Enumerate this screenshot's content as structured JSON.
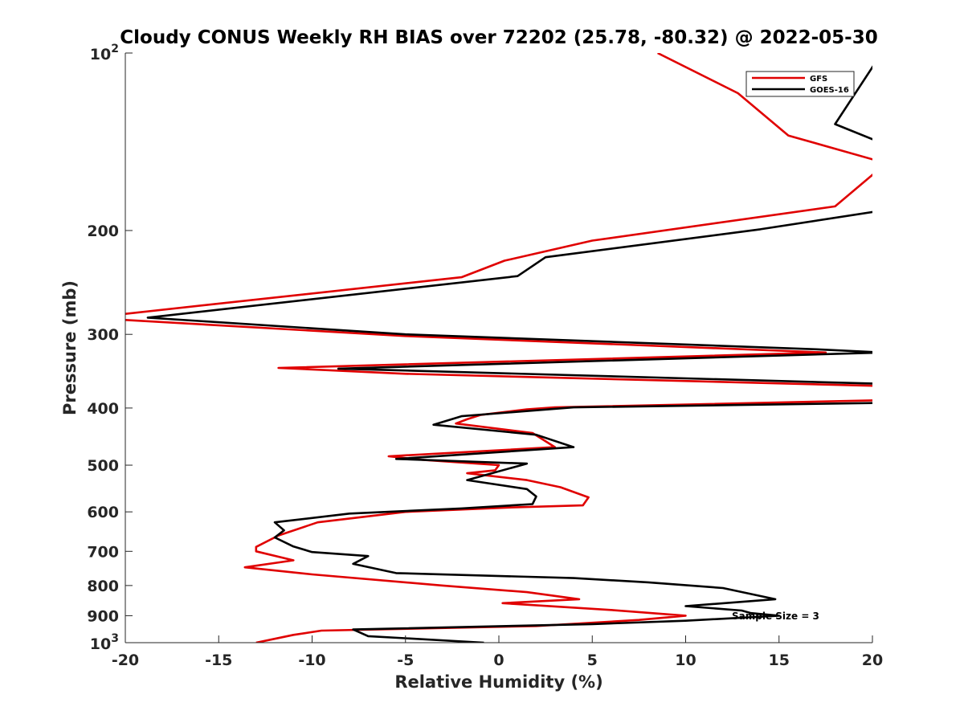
{
  "chart_data": {
    "type": "line",
    "title": "Cloudy CONUS Weekly RH BIAS over 72202 (25.78, -80.32) @ 2022-05-30",
    "xlabel": "Relative Humidity (%)",
    "ylabel": "Pressure (mb)",
    "xlim": [
      -20,
      20
    ],
    "ylim": [
      100,
      1000
    ],
    "y_scale": "log",
    "y_reversed": true,
    "grid": false,
    "legend_position": "top-right",
    "annotation": "Sample Size = 3",
    "x_ticks": [
      {
        "value": -20,
        "label": "-20"
      },
      {
        "value": -15,
        "label": "-15"
      },
      {
        "value": -10,
        "label": "-10"
      },
      {
        "value": -5,
        "label": "-5"
      },
      {
        "value": 0,
        "label": "0"
      },
      {
        "value": 5,
        "label": "5"
      },
      {
        "value": 10,
        "label": "10"
      },
      {
        "value": 15,
        "label": "15"
      },
      {
        "value": 20,
        "label": "20"
      }
    ],
    "y_ticks": [
      {
        "value": 100,
        "base": "10",
        "exp": "2"
      },
      {
        "value": 200,
        "label": "200"
      },
      {
        "value": 300,
        "label": "300"
      },
      {
        "value": 400,
        "label": "400"
      },
      {
        "value": 500,
        "label": "500"
      },
      {
        "value": 600,
        "label": "600"
      },
      {
        "value": 700,
        "label": "700"
      },
      {
        "value": 800,
        "label": "800"
      },
      {
        "value": 900,
        "label": "900"
      },
      {
        "value": 1000,
        "base": "10",
        "exp": "3"
      }
    ],
    "series": [
      {
        "name": "GFS",
        "color": "#e00000",
        "points": [
          [
            8.5,
            100
          ],
          [
            12.8,
            117
          ],
          [
            15.5,
            138
          ],
          [
            20.5,
            153
          ],
          [
            20.3,
            158
          ],
          [
            18.0,
            182
          ],
          [
            5.0,
            208
          ],
          [
            0.3,
            225
          ],
          [
            -2.0,
            240
          ],
          [
            -20.5,
            278
          ],
          [
            -20.5,
            283
          ],
          [
            -5.0,
            302
          ],
          [
            17.5,
            322
          ],
          [
            -11.8,
            342
          ],
          [
            -5.0,
            350
          ],
          [
            20.5,
            367
          ],
          [
            20.5,
            388
          ],
          [
            3.0,
            399
          ],
          [
            1.5,
            402
          ],
          [
            -1.0,
            411
          ],
          [
            -1.7,
            418
          ],
          [
            -2.3,
            425
          ],
          [
            1.8,
            441
          ],
          [
            3.0,
            466
          ],
          [
            -5.9,
            483
          ],
          [
            -4.0,
            490
          ],
          [
            0.0,
            500
          ],
          [
            -0.2,
            510
          ],
          [
            -1.7,
            516
          ],
          [
            1.5,
            530
          ],
          [
            3.3,
            545
          ],
          [
            4.8,
            567
          ],
          [
            4.5,
            585
          ],
          [
            0.5,
            590
          ],
          [
            -5.0,
            600
          ],
          [
            -9.7,
            625
          ],
          [
            -11.8,
            658
          ],
          [
            -13.0,
            688
          ],
          [
            -13.0,
            700
          ],
          [
            -11.0,
            725
          ],
          [
            -13.6,
            745
          ],
          [
            -10.0,
            766
          ],
          [
            -3.0,
            800
          ],
          [
            1.5,
            821
          ],
          [
            4.3,
            844
          ],
          [
            0.2,
            857
          ],
          [
            6.0,
            880
          ],
          [
            10.0,
            900
          ],
          [
            7.5,
            915
          ],
          [
            2.0,
            937
          ],
          [
            -9.5,
            954
          ],
          [
            -11.0,
            970
          ],
          [
            -12.0,
            985
          ],
          [
            -13.0,
            1000
          ]
        ]
      },
      {
        "name": "GOES-16",
        "color": "#000000",
        "points": [
          [
            20.5,
            100
          ],
          [
            18.0,
            132
          ],
          [
            20.0,
            140
          ],
          [
            20.5,
            142
          ],
          [
            20.5,
            185
          ],
          [
            14.0,
            199
          ],
          [
            2.5,
            222
          ],
          [
            1.0,
            239
          ],
          [
            -18.8,
            281
          ],
          [
            -5.0,
            300
          ],
          [
            17.0,
            318
          ],
          [
            20.5,
            322
          ],
          [
            -8.6,
            343
          ],
          [
            20.5,
            364
          ],
          [
            20.5,
            392
          ],
          [
            4.0,
            399
          ],
          [
            -2.0,
            413
          ],
          [
            -3.5,
            427
          ],
          [
            2.0,
            444
          ],
          [
            4.0,
            466
          ],
          [
            -5.5,
            488
          ],
          [
            1.5,
            497
          ],
          [
            -1.7,
            530
          ],
          [
            1.5,
            549
          ],
          [
            2.0,
            565
          ],
          [
            1.8,
            582
          ],
          [
            -2.0,
            592
          ],
          [
            -8.0,
            604
          ],
          [
            -12.0,
            625
          ],
          [
            -11.5,
            645
          ],
          [
            -12.0,
            663
          ],
          [
            -11.0,
            687
          ],
          [
            -10.0,
            702
          ],
          [
            -7.0,
            713
          ],
          [
            -7.8,
            735
          ],
          [
            -5.5,
            762
          ],
          [
            4.0,
            777
          ],
          [
            8.0,
            790
          ],
          [
            12.0,
            808
          ],
          [
            14.8,
            844
          ],
          [
            10.0,
            867
          ],
          [
            13.0,
            882
          ],
          [
            13.5,
            891
          ],
          [
            15.0,
            900
          ],
          [
            10.0,
            918
          ],
          [
            5.0,
            930
          ],
          [
            -7.8,
            950
          ],
          [
            -7.0,
            975
          ],
          [
            -0.8,
            1000
          ]
        ]
      }
    ]
  }
}
